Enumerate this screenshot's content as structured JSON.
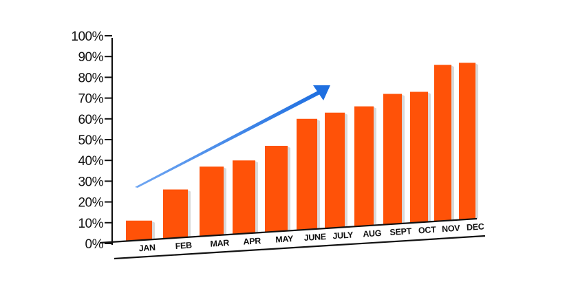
{
  "colors": {
    "bar": "#ff5208",
    "bar_shadow": "#d9d9d9",
    "arrow": "#1f6fe0",
    "axis": "#111111"
  },
  "chart_data": {
    "type": "bar",
    "title": "",
    "xlabel": "",
    "ylabel": "",
    "categories": [
      "JAN",
      "FEB",
      "MAR",
      "APR",
      "MAY",
      "JUNE",
      "JULY",
      "AUG",
      "SEPT",
      "OCT",
      "NOV",
      "DEC"
    ],
    "values": [
      11,
      26,
      37,
      40,
      47,
      60,
      63,
      66,
      72,
      73,
      86,
      87
    ],
    "ylim": [
      0,
      100
    ],
    "yticks": [
      "0%",
      "10%",
      "20%",
      "30%",
      "40%",
      "50%",
      "60%",
      "70%",
      "80%",
      "90%",
      "100%"
    ],
    "grid": false,
    "legend": "none",
    "annotation": "upward-trend-arrow"
  }
}
